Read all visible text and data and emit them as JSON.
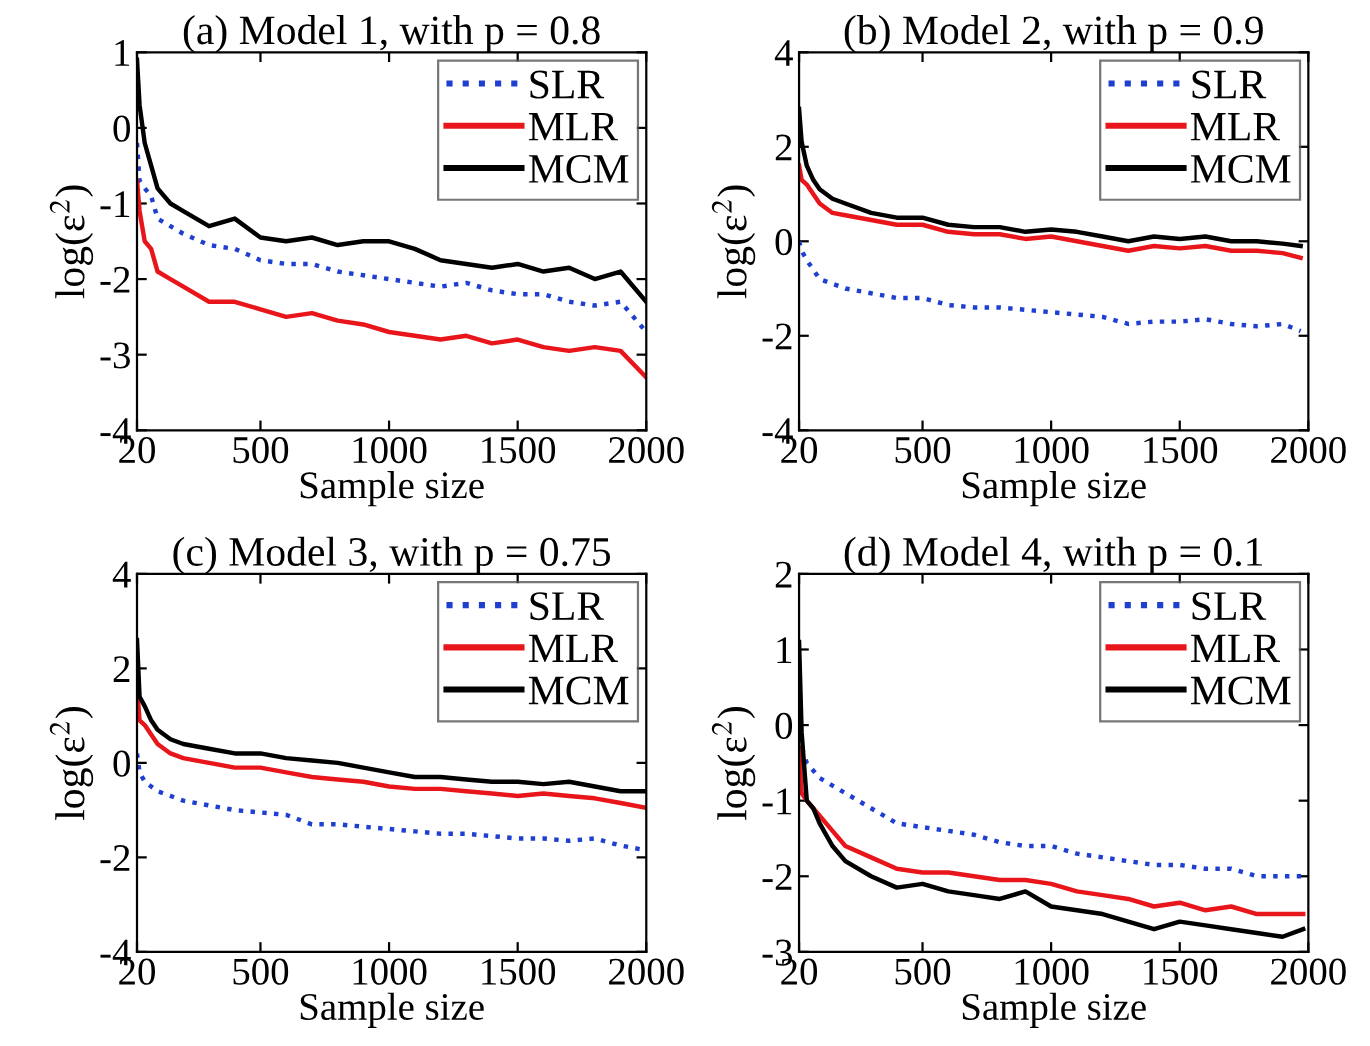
{
  "chart_data": [
    {
      "type": "line",
      "title": "(a) Model 1, with p = 0.8",
      "xlabel": "Sample size",
      "ylabel": "log(ε$^{2}$)",
      "x": [
        20,
        30,
        50,
        75,
        100,
        150,
        200,
        300,
        400,
        500,
        600,
        700,
        800,
        900,
        1000,
        1100,
        1200,
        1300,
        1400,
        1500,
        1600,
        1700,
        1800,
        1900,
        2000
      ],
      "xlim": [
        20,
        2000
      ],
      "xticks": [
        20,
        500,
        1000,
        1500,
        2000
      ],
      "ylim": [
        -4,
        1
      ],
      "yticks": [
        -4,
        -3,
        -2,
        -1,
        0,
        1
      ],
      "legend": "top right",
      "grid": false,
      "series": [
        {
          "name": "SLR",
          "color": "#1f3fd0",
          "line_style": "dotted",
          "values": [
            -0.2,
            -0.7,
            -0.8,
            -0.9,
            -1.2,
            -1.3,
            -1.4,
            -1.55,
            -1.6,
            -1.75,
            -1.8,
            -1.8,
            -1.9,
            -1.95,
            -2.0,
            -2.05,
            -2.1,
            -2.05,
            -2.15,
            -2.2,
            -2.2,
            -2.3,
            -2.35,
            -2.3,
            -2.7
          ]
        },
        {
          "name": "MLR",
          "color": "#e8161b",
          "line_style": "solid",
          "values": [
            -0.7,
            -1.1,
            -1.5,
            -1.6,
            -1.9,
            -2.0,
            -2.1,
            -2.3,
            -2.3,
            -2.4,
            -2.5,
            -2.45,
            -2.55,
            -2.6,
            -2.7,
            -2.75,
            -2.8,
            -2.75,
            -2.85,
            -2.8,
            -2.9,
            -2.95,
            -2.9,
            -2.95,
            -3.3
          ]
        },
        {
          "name": "MCM",
          "color": "#000000",
          "line_style": "solid",
          "values": [
            0.9,
            0.3,
            -0.2,
            -0.5,
            -0.8,
            -1.0,
            -1.1,
            -1.3,
            -1.2,
            -1.45,
            -1.5,
            -1.45,
            -1.55,
            -1.5,
            -1.5,
            -1.6,
            -1.75,
            -1.8,
            -1.85,
            -1.8,
            -1.9,
            -1.85,
            -2.0,
            -1.9,
            -2.3
          ]
        }
      ]
    },
    {
      "type": "line",
      "title": "(b) Model 2, with p = 0.9",
      "xlabel": "Sample size",
      "ylabel": "log(ε$^{2}$)",
      "x": [
        20,
        30,
        50,
        75,
        100,
        150,
        200,
        300,
        400,
        500,
        600,
        700,
        800,
        900,
        1000,
        1100,
        1200,
        1300,
        1400,
        1500,
        1600,
        1700,
        1800,
        1900,
        1970
      ],
      "xlim": [
        20,
        2000
      ],
      "xticks": [
        20,
        500,
        1000,
        1500,
        2000
      ],
      "ylim": [
        -4,
        4
      ],
      "yticks": [
        -4,
        -2,
        0,
        2,
        4
      ],
      "legend": "top right",
      "grid": false,
      "series": [
        {
          "name": "SLR",
          "color": "#1f3fd0",
          "line_style": "dotted",
          "values": [
            0.0,
            -0.2,
            -0.4,
            -0.6,
            -0.8,
            -0.9,
            -1.0,
            -1.1,
            -1.2,
            -1.2,
            -1.35,
            -1.4,
            -1.4,
            -1.45,
            -1.5,
            -1.55,
            -1.6,
            -1.75,
            -1.7,
            -1.7,
            -1.65,
            -1.75,
            -1.8,
            -1.75,
            -1.9
          ]
        },
        {
          "name": "MLR",
          "color": "#e8161b",
          "line_style": "solid",
          "values": [
            1.6,
            1.3,
            1.2,
            1.0,
            0.8,
            0.6,
            0.55,
            0.45,
            0.35,
            0.35,
            0.2,
            0.15,
            0.15,
            0.05,
            0.1,
            0.0,
            -0.1,
            -0.2,
            -0.1,
            -0.15,
            -0.1,
            -0.2,
            -0.2,
            -0.25,
            -0.35
          ]
        },
        {
          "name": "MCM",
          "color": "#000000",
          "line_style": "solid",
          "values": [
            2.8,
            2.1,
            1.6,
            1.3,
            1.1,
            0.9,
            0.8,
            0.6,
            0.5,
            0.5,
            0.35,
            0.3,
            0.3,
            0.2,
            0.25,
            0.2,
            0.1,
            0.0,
            0.1,
            0.05,
            0.1,
            0.0,
            0.0,
            -0.05,
            -0.1
          ]
        }
      ]
    },
    {
      "type": "line",
      "title": "(c) Model 3, with p = 0.75",
      "xlabel": "Sample size",
      "ylabel": "log(ε$^{2}$)",
      "x": [
        20,
        30,
        50,
        75,
        100,
        150,
        200,
        300,
        400,
        500,
        600,
        700,
        800,
        900,
        1000,
        1100,
        1200,
        1300,
        1400,
        1500,
        1600,
        1700,
        1800,
        1900,
        2000
      ],
      "xlim": [
        20,
        2000
      ],
      "xticks": [
        20,
        500,
        1000,
        1500,
        2000
      ],
      "ylim": [
        -4,
        4
      ],
      "yticks": [
        -4,
        -2,
        0,
        2,
        4
      ],
      "legend": "top right",
      "grid": false,
      "series": [
        {
          "name": "SLR",
          "color": "#1f3fd0",
          "line_style": "dotted",
          "values": [
            0.2,
            -0.2,
            -0.4,
            -0.5,
            -0.6,
            -0.7,
            -0.8,
            -0.9,
            -1.0,
            -1.05,
            -1.1,
            -1.3,
            -1.3,
            -1.35,
            -1.4,
            -1.45,
            -1.5,
            -1.5,
            -1.55,
            -1.6,
            -1.6,
            -1.65,
            -1.6,
            -1.75,
            -1.85
          ]
        },
        {
          "name": "MLR",
          "color": "#e8161b",
          "line_style": "solid",
          "values": [
            1.6,
            0.9,
            0.8,
            0.6,
            0.4,
            0.2,
            0.1,
            0.0,
            -0.1,
            -0.1,
            -0.2,
            -0.3,
            -0.35,
            -0.4,
            -0.5,
            -0.55,
            -0.55,
            -0.6,
            -0.65,
            -0.7,
            -0.65,
            -0.7,
            -0.75,
            -0.85,
            -0.95
          ]
        },
        {
          "name": "MCM",
          "color": "#000000",
          "line_style": "solid",
          "values": [
            2.6,
            1.4,
            1.2,
            0.9,
            0.7,
            0.5,
            0.4,
            0.3,
            0.2,
            0.2,
            0.1,
            0.05,
            0.0,
            -0.1,
            -0.2,
            -0.3,
            -0.3,
            -0.35,
            -0.4,
            -0.4,
            -0.45,
            -0.4,
            -0.5,
            -0.6,
            -0.6
          ]
        }
      ]
    },
    {
      "type": "line",
      "title": "(d) Model 4, with p = 0.1",
      "xlabel": "Sample size",
      "ylabel": "log(ε$^{2}$)",
      "x": [
        20,
        30,
        50,
        75,
        100,
        150,
        200,
        300,
        400,
        500,
        600,
        700,
        800,
        900,
        1000,
        1100,
        1200,
        1300,
        1400,
        1500,
        1600,
        1700,
        1800,
        1900,
        1980
      ],
      "xlim": [
        20,
        2000
      ],
      "xticks": [
        20,
        500,
        1000,
        1500,
        2000
      ],
      "ylim": [
        -3,
        2
      ],
      "yticks": [
        -3,
        -2,
        -1,
        0,
        1,
        2
      ],
      "legend": "top right",
      "grid": false,
      "series": [
        {
          "name": "SLR",
          "color": "#1f3fd0",
          "line_style": "dotted",
          "values": [
            0.0,
            -0.3,
            -0.5,
            -0.6,
            -0.7,
            -0.8,
            -0.9,
            -1.1,
            -1.3,
            -1.35,
            -1.4,
            -1.45,
            -1.55,
            -1.6,
            -1.6,
            -1.7,
            -1.75,
            -1.8,
            -1.85,
            -1.85,
            -1.9,
            -1.9,
            -2.0,
            -2.0,
            -2.0
          ]
        },
        {
          "name": "MLR",
          "color": "#e8161b",
          "line_style": "solid",
          "values": [
            -0.3,
            -0.9,
            -1.0,
            -1.1,
            -1.2,
            -1.4,
            -1.6,
            -1.75,
            -1.9,
            -1.95,
            -1.95,
            -2.0,
            -2.05,
            -2.05,
            -2.1,
            -2.2,
            -2.25,
            -2.3,
            -2.4,
            -2.35,
            -2.45,
            -2.4,
            -2.5,
            -2.5,
            -2.5
          ]
        },
        {
          "name": "MCM",
          "color": "#000000",
          "line_style": "solid",
          "values": [
            1.1,
            -0.1,
            -1.0,
            -1.1,
            -1.3,
            -1.6,
            -1.8,
            -2.0,
            -2.15,
            -2.1,
            -2.2,
            -2.25,
            -2.3,
            -2.2,
            -2.4,
            -2.45,
            -2.5,
            -2.6,
            -2.7,
            -2.6,
            -2.65,
            -2.7,
            -2.75,
            -2.8,
            -2.7
          ]
        }
      ]
    }
  ]
}
